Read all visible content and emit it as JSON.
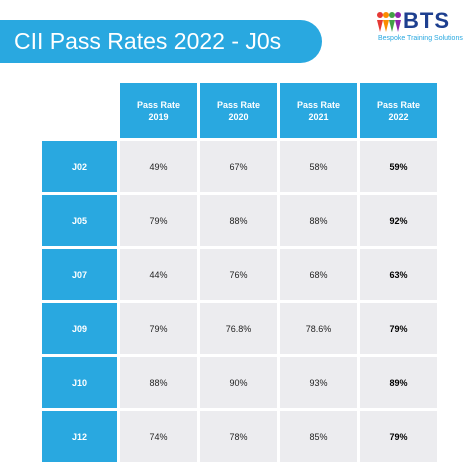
{
  "header": {
    "title": "CII Pass Rates 2022 - J0s",
    "logo": "BTS",
    "logo_subtitle": "Bespoke Training Solutions"
  },
  "table": {
    "columns": [
      "Pass Rate 2019",
      "Pass Rate 2020",
      "Pass Rate 2021",
      "Pass Rate 2022"
    ],
    "rows": [
      [
        "J02",
        "49%",
        "67%",
        "58%",
        "59%"
      ],
      [
        "J05",
        "79%",
        "88%",
        "88%",
        "92%"
      ],
      [
        "J07",
        "44%",
        "76%",
        "68%",
        "63%"
      ],
      [
        "J09",
        "79%",
        "76.8%",
        "78.6%",
        "79%"
      ],
      [
        "J10",
        "88%",
        "90%",
        "93%",
        "89%"
      ],
      [
        "J12",
        "74%",
        "78%",
        "85%",
        "79%"
      ]
    ]
  }
}
